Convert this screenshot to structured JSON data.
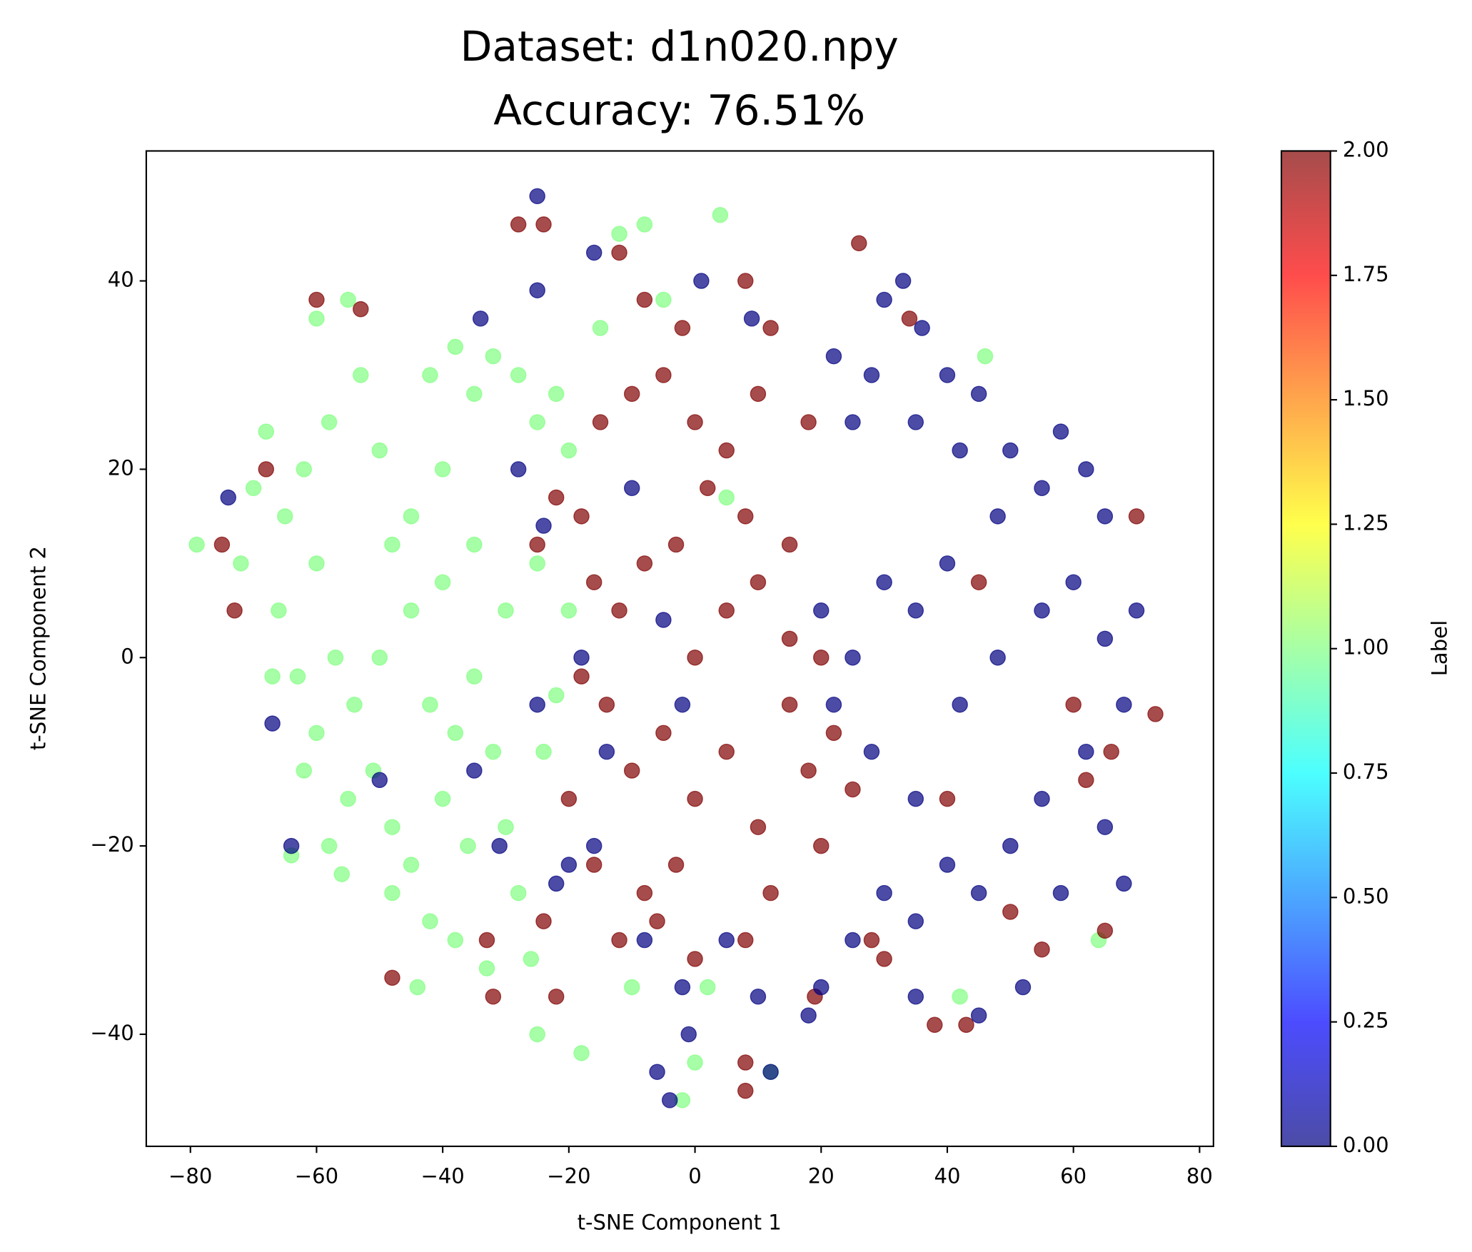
{
  "chart_data": {
    "type": "scatter",
    "title": "Dataset: d1n020.npy",
    "subtitle": "Accuracy: 76.51%",
    "xlabel": "t-SNE Component 1",
    "ylabel": "t-SNE Component 2",
    "colorbar_label": "Label",
    "colormap": "jet",
    "alpha": 0.7,
    "xlim": [
      -87,
      82.2
    ],
    "ylim": [
      -51.9,
      53.8
    ],
    "clim": [
      0,
      2
    ],
    "xticks": [
      {
        "value": -80,
        "label": "−80"
      },
      {
        "value": -60,
        "label": "−60"
      },
      {
        "value": -40,
        "label": "−40"
      },
      {
        "value": -20,
        "label": "−20"
      },
      0,
      20,
      40,
      60,
      80
    ],
    "yticks": [
      {
        "value": -40,
        "label": "−40"
      },
      {
        "value": -20,
        "label": "−20"
      },
      0,
      20,
      40
    ],
    "cticks": [
      {
        "value": 0,
        "label": "0.00"
      },
      {
        "value": 0.25,
        "label": "0.25"
      },
      {
        "value": 0.5,
        "label": "0.50"
      },
      {
        "value": 0.75,
        "label": "0.75"
      },
      {
        "value": 1,
        "label": "1.00"
      },
      {
        "value": 1.25,
        "label": "1.25"
      },
      {
        "value": 1.5,
        "label": "1.50"
      },
      {
        "value": 1.75,
        "label": "1.75"
      },
      {
        "value": 2,
        "label": "2.00"
      }
    ],
    "series": [
      {
        "c": 1,
        "x": [
          -70,
          -68,
          -65,
          -62,
          -60,
          -58,
          -55,
          -53,
          -50,
          -48,
          -45,
          -42,
          -40,
          -38,
          -35,
          -32,
          -28,
          -25,
          -22,
          -20,
          -66,
          -63,
          -60,
          -57,
          -54,
          -51,
          -48,
          -45,
          -42,
          -40,
          -38,
          -35,
          -32,
          -30,
          -28,
          -26,
          -24,
          -22,
          -20,
          -25,
          -30,
          -35,
          -40,
          -45,
          -50,
          -55,
          -58,
          -62,
          -67,
          -72,
          -79,
          -64,
          -44,
          -38,
          -33,
          -18,
          -10,
          -2,
          4,
          -12,
          -8,
          -15,
          -5,
          2,
          0,
          5,
          12,
          46,
          42,
          64,
          -25,
          -56,
          -48,
          -36,
          -42,
          -60
        ],
        "y": [
          18,
          24,
          15,
          20,
          10,
          25,
          38,
          30,
          22,
          12,
          5,
          30,
          20,
          33,
          28,
          32,
          30,
          25,
          28,
          22,
          5,
          -2,
          -8,
          0,
          -5,
          -12,
          -18,
          -22,
          -28,
          -15,
          -8,
          -2,
          -10,
          -18,
          -25,
          -32,
          -10,
          -4,
          5,
          10,
          5,
          12,
          8,
          15,
          0,
          -15,
          -20,
          -12,
          -2,
          10,
          12,
          -21,
          -35,
          -30,
          -33,
          -42,
          -35,
          -47,
          47,
          45,
          46,
          35,
          38,
          -35,
          -43,
          17,
          -44,
          32,
          -36,
          -30,
          -40,
          -23,
          -25,
          -20,
          -5,
          36
        ]
      },
      {
        "c": 2,
        "x": [
          -15,
          -10,
          -5,
          0,
          5,
          10,
          8,
          2,
          -3,
          -8,
          -12,
          -16,
          -18,
          -22,
          -25,
          -14,
          -10,
          -5,
          0,
          -3,
          -8,
          5,
          10,
          15,
          18,
          20,
          22,
          12,
          8,
          0,
          -6,
          -12,
          -16,
          -20,
          -18,
          0,
          5,
          10,
          15,
          18,
          12,
          8,
          -2,
          -8,
          -12,
          -28,
          -24,
          15,
          20,
          25,
          26,
          34,
          -60,
          -53,
          -73,
          -75,
          -68,
          -48,
          -32,
          -33,
          -24,
          -22,
          8,
          8,
          30,
          38,
          43,
          55,
          50,
          65,
          70,
          73,
          60,
          40,
          28,
          19,
          62,
          66,
          45
        ],
        "y": [
          25,
          28,
          30,
          25,
          22,
          28,
          15,
          18,
          12,
          10,
          5,
          8,
          15,
          17,
          12,
          -5,
          -12,
          -8,
          -15,
          -22,
          -25,
          -10,
          -18,
          -5,
          -12,
          -20,
          -8,
          -25,
          -30,
          -32,
          -28,
          -30,
          -22,
          -15,
          -2,
          0,
          5,
          8,
          12,
          25,
          35,
          40,
          35,
          38,
          43,
          46,
          46,
          2,
          0,
          -14,
          44,
          36,
          38,
          37,
          5,
          12,
          20,
          -34,
          -36,
          -30,
          -28,
          -36,
          -43,
          -46,
          -32,
          -39,
          -39,
          -31,
          -27,
          -29,
          15,
          -6,
          -5,
          -15,
          -30,
          -36,
          -13,
          -10,
          8
        ]
      },
      {
        "c": 0,
        "x": [
          30,
          33,
          36,
          40,
          28,
          25,
          22,
          35,
          42,
          45,
          50,
          55,
          58,
          62,
          65,
          48,
          40,
          35,
          30,
          25,
          20,
          22,
          28,
          35,
          42,
          48,
          55,
          60,
          65,
          70,
          68,
          62,
          55,
          50,
          45,
          40,
          35,
          30,
          25,
          20,
          58,
          65,
          68,
          52,
          45,
          35,
          18,
          10,
          12,
          -6,
          -4,
          -1,
          -25,
          -25,
          -34,
          -16,
          1,
          9,
          -14,
          -16,
          -20,
          -22,
          -5,
          -10,
          -25,
          -35,
          -50,
          -67,
          -74,
          -64,
          -31,
          -28,
          -24,
          -2,
          5,
          -2,
          -18,
          -8
        ],
        "y": [
          38,
          40,
          35,
          30,
          30,
          25,
          32,
          25,
          22,
          28,
          22,
          18,
          24,
          20,
          15,
          15,
          10,
          5,
          8,
          0,
          5,
          -5,
          -10,
          -15,
          -5,
          0,
          5,
          8,
          2,
          5,
          -5,
          -10,
          -15,
          -20,
          -25,
          -22,
          -28,
          -25,
          -30,
          -35,
          -25,
          -18,
          -24,
          -35,
          -38,
          -36,
          -38,
          -36,
          -44,
          -44,
          -47,
          -40,
          49,
          39,
          36,
          43,
          40,
          36,
          -10,
          -20,
          -22,
          -24,
          4,
          18,
          -5,
          -12,
          -13,
          -7,
          17,
          -20,
          -20,
          20,
          14,
          -5,
          -30,
          -35,
          0,
          -30
        ]
      }
    ]
  }
}
